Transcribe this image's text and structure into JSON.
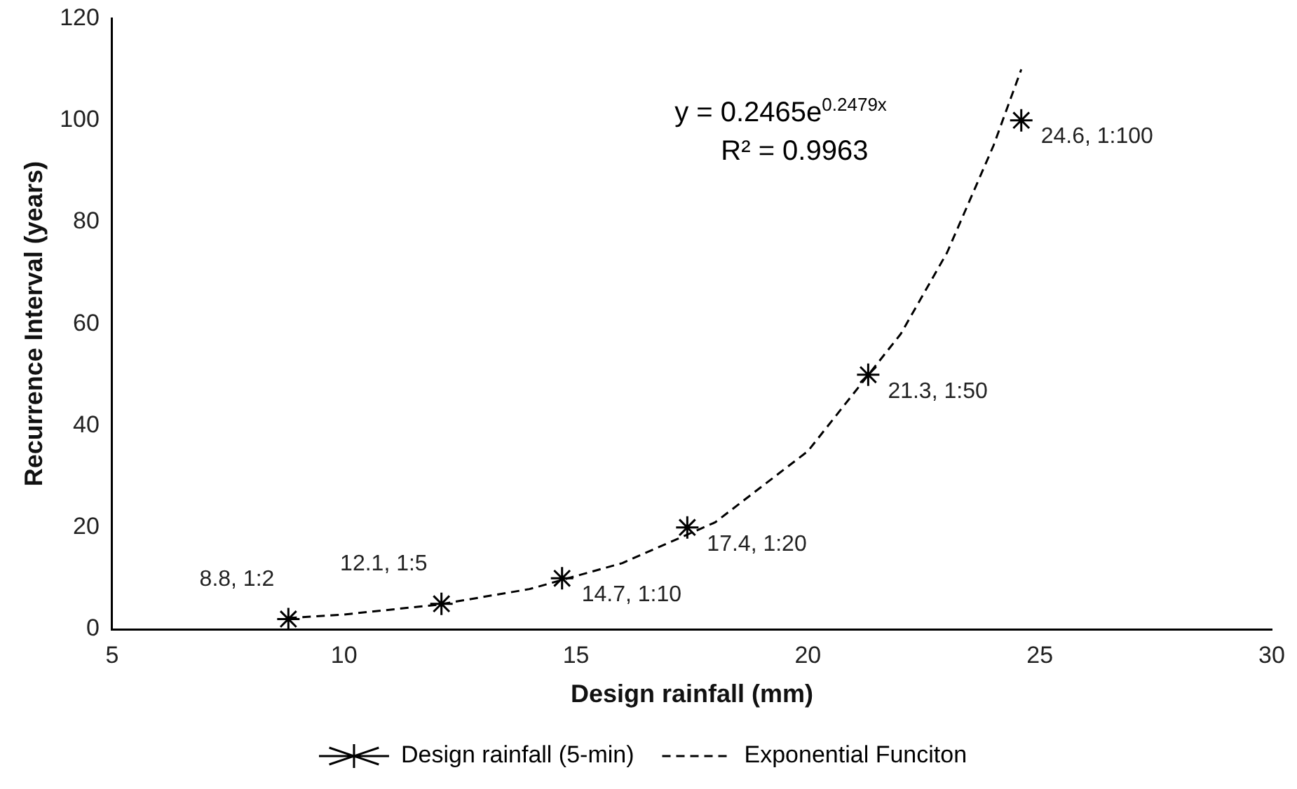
{
  "chart_data": {
    "type": "scatter",
    "xlabel": "Design rainfall (mm)",
    "ylabel": "Recurrence Interval (years)",
    "series": [
      {
        "name": "Design rainfall (5-min)",
        "color": "#000000",
        "marker": "cross",
        "x": [
          8.8,
          12.1,
          14.7,
          17.4,
          21.3,
          24.6
        ],
        "values": [
          2,
          5,
          10,
          20,
          50,
          100
        ],
        "value_labels": [
          "8.8, 1:2",
          "12.1, 1:5",
          "14.7, 1:10",
          "17.4, 1:20",
          "21.3, 1:50",
          "24.6, 1:100"
        ]
      },
      {
        "name": "Exponential Funciton",
        "type": "line",
        "color": "#000000",
        "line_style": "dashed",
        "marker": "none",
        "x": [
          8.8,
          10,
          12,
          14,
          16,
          18,
          20,
          22,
          23,
          24,
          24.6
        ],
        "values": [
          2.2,
          2.9,
          4.8,
          7.9,
          13,
          21,
          35,
          58,
          74,
          95,
          110
        ]
      }
    ],
    "annotations": [
      "y = 0.2465e$^{0.2479x}$",
      "R² = 0.9963"
    ],
    "xlim": [
      5,
      30
    ],
    "xticks": [
      5,
      10,
      15,
      20,
      25,
      30
    ],
    "ylim": [
      0,
      120
    ],
    "yticks": [
      0,
      20,
      40,
      60,
      80,
      100,
      120
    ],
    "grid": false,
    "legend": "bottom"
  }
}
